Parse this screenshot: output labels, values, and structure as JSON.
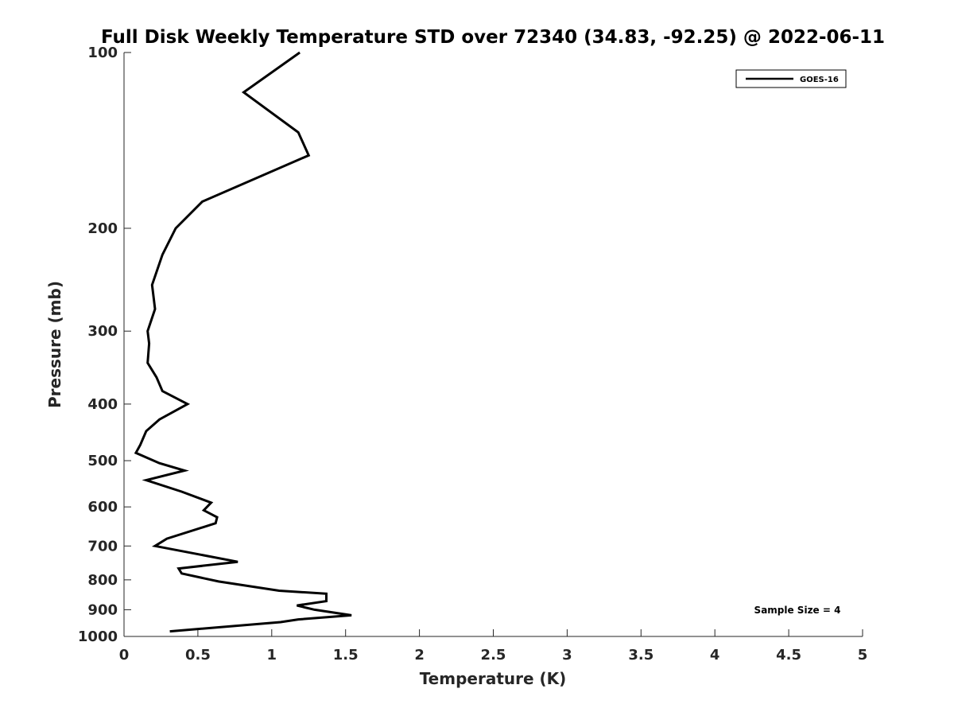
{
  "chart_data": {
    "type": "line",
    "title": "Full Disk Weekly Temperature STD over 72340 (34.83, -92.25) @ 2022-06-11",
    "xlabel": "Temperature (K)",
    "ylabel": "Pressure (mb)",
    "xlim": [
      0,
      5
    ],
    "ylim": [
      100,
      1000
    ],
    "y_scale": "log",
    "y_reversed": true,
    "x_ticks": [
      0,
      0.5,
      1,
      1.5,
      2,
      2.5,
      3,
      3.5,
      4,
      4.5,
      5
    ],
    "x_tick_labels": [
      "0",
      "0.5",
      "1",
      "1.5",
      "2",
      "2.5",
      "3",
      "3.5",
      "4",
      "4.5",
      "5"
    ],
    "y_ticks": [
      100,
      200,
      300,
      400,
      500,
      600,
      700,
      800,
      900,
      1000
    ],
    "y_tick_labels": [
      "100",
      "200",
      "300",
      "400",
      "500",
      "600",
      "700",
      "800",
      "900",
      "1000"
    ],
    "grid": false,
    "legend_position": "top-right",
    "annotation": "Sample Size = 4",
    "series": [
      {
        "name": "GOES-16",
        "color": "#000000",
        "points": [
          [
            1.19,
            100
          ],
          [
            0.81,
            117
          ],
          [
            1.18,
            137
          ],
          [
            1.25,
            150
          ],
          [
            0.53,
            180
          ],
          [
            0.35,
            200
          ],
          [
            0.26,
            222
          ],
          [
            0.19,
            250
          ],
          [
            0.21,
            275
          ],
          [
            0.16,
            300
          ],
          [
            0.17,
            315
          ],
          [
            0.16,
            340
          ],
          [
            0.22,
            360
          ],
          [
            0.26,
            380
          ],
          [
            0.43,
            400
          ],
          [
            0.24,
            425
          ],
          [
            0.15,
            445
          ],
          [
            0.11,
            470
          ],
          [
            0.08,
            485
          ],
          [
            0.24,
            505
          ],
          [
            0.41,
            520
          ],
          [
            0.15,
            540
          ],
          [
            0.39,
            565
          ],
          [
            0.59,
            590
          ],
          [
            0.54,
            608
          ],
          [
            0.63,
            625
          ],
          [
            0.62,
            640
          ],
          [
            0.29,
            680
          ],
          [
            0.21,
            700
          ],
          [
            0.77,
            745
          ],
          [
            0.37,
            765
          ],
          [
            0.39,
            780
          ],
          [
            0.64,
            805
          ],
          [
            1.05,
            835
          ],
          [
            1.37,
            845
          ],
          [
            1.37,
            870
          ],
          [
            1.17,
            885
          ],
          [
            1.29,
            900
          ],
          [
            1.54,
            920
          ],
          [
            1.18,
            935
          ],
          [
            1.06,
            945
          ],
          [
            0.31,
            980
          ]
        ]
      }
    ]
  }
}
